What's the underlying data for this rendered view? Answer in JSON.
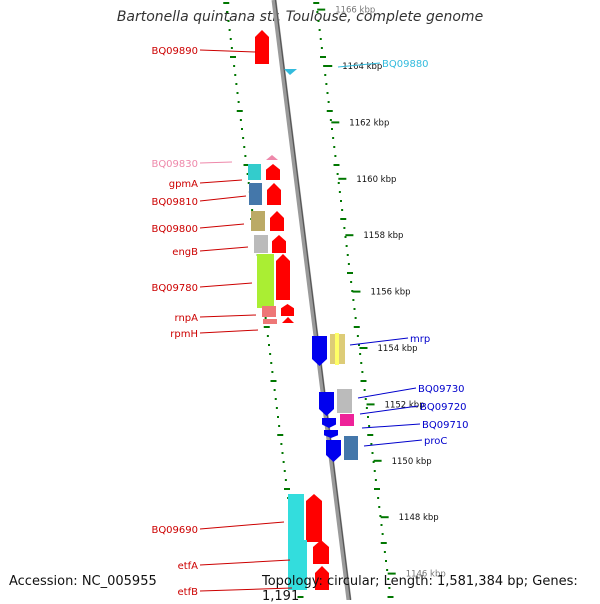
{
  "title": "Bartonella quintana str. Toulouse, complete genome",
  "footer": {
    "accession": "Accession: NC_005955",
    "topology": "Topology: circular; Length: 1,581,384 bp; Genes: 1,191"
  },
  "colors": {
    "backbone": "#888888",
    "ticks": "#007700",
    "forward_label": "#cc0000",
    "reverse_label": "#0000cc",
    "highlight_cyan": "#33bbdd",
    "highlight_pink": "#ee88aa"
  },
  "scale": {
    "unit": "kbp",
    "ticks": [
      {
        "kbp": 1166,
        "label": "1166 kbp"
      },
      {
        "kbp": 1164,
        "label": "1164 kbp"
      },
      {
        "kbp": 1162,
        "label": "1162 kbp"
      },
      {
        "kbp": 1160,
        "label": "1160 kbp"
      },
      {
        "kbp": 1158,
        "label": "1158 kbp"
      },
      {
        "kbp": 1156,
        "label": "1156 kbp"
      },
      {
        "kbp": 1154,
        "label": "1154 kbp"
      },
      {
        "kbp": 1152,
        "label": "1152 kbp"
      },
      {
        "kbp": 1150,
        "label": "1150 kbp"
      },
      {
        "kbp": 1148,
        "label": "1148 kbp"
      },
      {
        "kbp": 1146,
        "label": "1146 kbp"
      }
    ]
  },
  "genes_left": [
    {
      "label": "BQ09890",
      "color": "#cc0000"
    },
    {
      "label": "BQ09830",
      "color": "#ee88aa"
    },
    {
      "label": "gpmA",
      "color": "#cc0000"
    },
    {
      "label": "BQ09810",
      "color": "#cc0000"
    },
    {
      "label": "BQ09800",
      "color": "#cc0000"
    },
    {
      "label": "engB",
      "color": "#cc0000"
    },
    {
      "label": "BQ09780",
      "color": "#cc0000"
    },
    {
      "label": "rnpA",
      "color": "#cc0000"
    },
    {
      "label": "rpmH",
      "color": "#cc0000"
    },
    {
      "label": "BQ09690",
      "color": "#cc0000"
    },
    {
      "label": "etfA",
      "color": "#cc0000"
    },
    {
      "label": "etfB",
      "color": "#cc0000"
    }
  ],
  "genes_right": [
    {
      "label": "BQ09880",
      "color": "#33bbdd"
    },
    {
      "label": "mrp",
      "color": "#0000cc"
    },
    {
      "label": "BQ09730",
      "color": "#0000cc"
    },
    {
      "label": "BQ09720",
      "color": "#0000cc"
    },
    {
      "label": "BQ09710",
      "color": "#0000cc"
    },
    {
      "label": "proC",
      "color": "#0000cc"
    }
  ]
}
